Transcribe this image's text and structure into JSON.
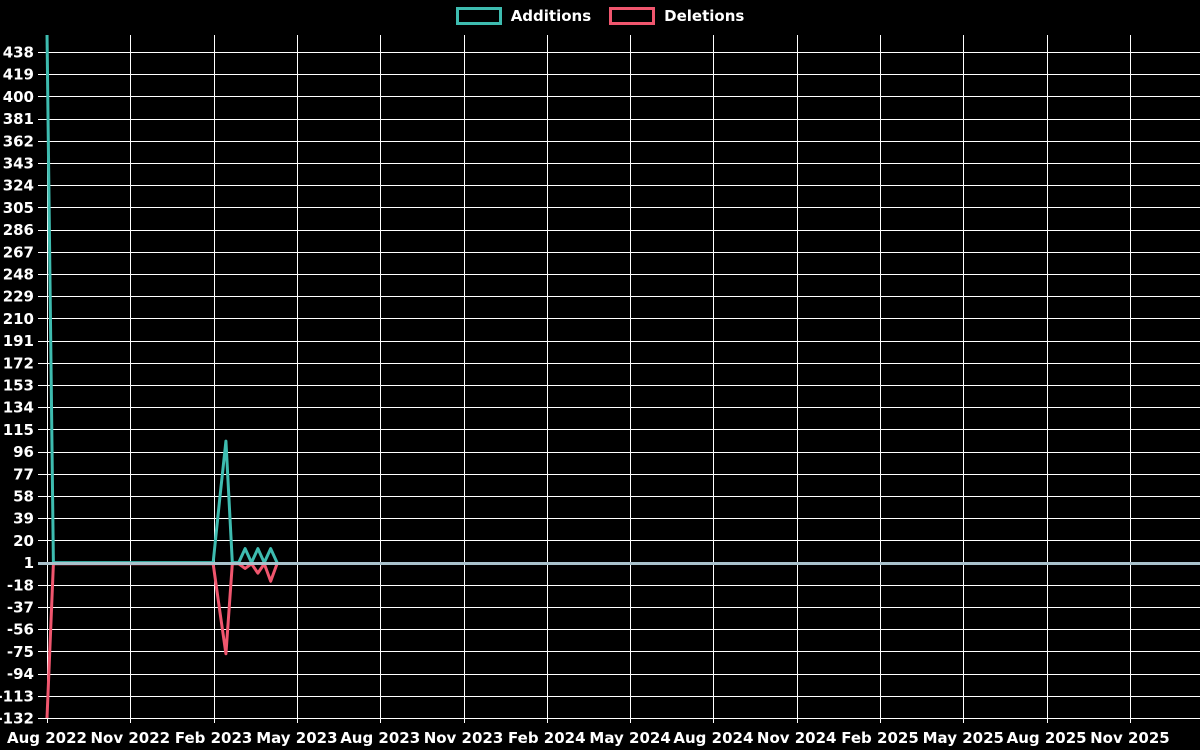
{
  "legend": {
    "items": [
      {
        "label": "Additions",
        "color": "#3ebcb0"
      },
      {
        "label": "Deletions",
        "color": "#f0566e"
      }
    ]
  },
  "chart_data": {
    "type": "line",
    "title": "",
    "background_color": "#000000",
    "grid_color": "#ffffff",
    "text_color": "#ffffff",
    "legend_position": "top-center",
    "grid": "on",
    "baseline": {
      "value": 1,
      "color": "#a9c2cc"
    },
    "x_axis": {
      "tick_labels": [
        "Aug 2022",
        "Nov 2022",
        "Feb 2023",
        "May 2023",
        "Aug 2023",
        "Nov 2023",
        "Feb 2024",
        "May 2024",
        "Aug 2024",
        "Nov 2024",
        "Feb 2025",
        "May 2025",
        "Aug 2025",
        "Nov 2025"
      ],
      "months_per_tick": 3,
      "points_are_weekly": true
    },
    "y_axis": {
      "tick_max": 438,
      "tick_min": -132,
      "tick_step": 19,
      "ticks": [
        438,
        419,
        400,
        381,
        362,
        343,
        324,
        305,
        286,
        267,
        248,
        229,
        210,
        191,
        172,
        153,
        134,
        115,
        96,
        77,
        58,
        39,
        20,
        1,
        -18,
        -37,
        -56,
        -75,
        -94,
        -113,
        -132
      ],
      "plot_clip_max_value": 455
    },
    "series": [
      {
        "name": "Additions",
        "color": "#3ebcb0",
        "values": [
          455,
          1,
          1,
          1,
          1,
          1,
          1,
          1,
          1,
          1,
          1,
          1,
          1,
          1,
          1,
          1,
          1,
          1,
          1,
          1,
          1,
          1,
          1,
          1,
          1,
          1,
          1,
          54,
          105,
          1,
          1,
          13,
          1,
          13,
          1,
          13,
          1
        ]
      },
      {
        "name": "Deletions",
        "color": "#f0566e",
        "values": [
          -132,
          0,
          0,
          0,
          0,
          0,
          0,
          0,
          0,
          0,
          0,
          0,
          0,
          0,
          0,
          0,
          0,
          0,
          0,
          0,
          0,
          0,
          0,
          0,
          0,
          0,
          0,
          -39,
          -77,
          0,
          0,
          -4,
          0,
          -8,
          0,
          -15,
          0
        ]
      }
    ]
  }
}
